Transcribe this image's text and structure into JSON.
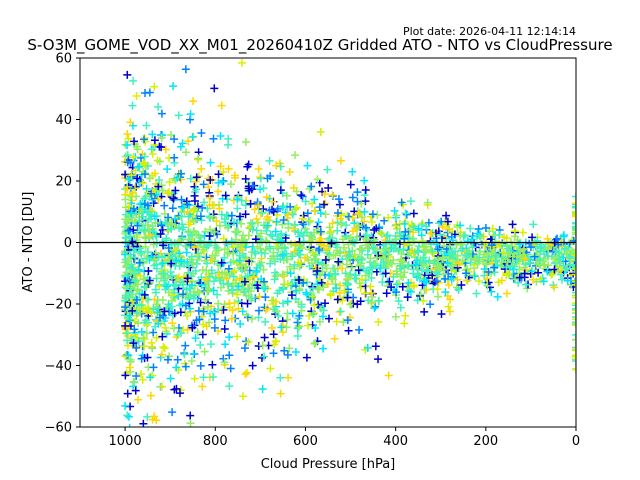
{
  "plot_date": "Plot date: 2026-04-11 12:14:14",
  "chart_data": {
    "type": "scatter",
    "title": "S-O3M_GOME_VOD_XX_M01_20260410Z Gridded ATO - NTO vs CloudPressure",
    "xlabel": "Cloud Pressure [hPa]",
    "ylabel": "ATO - NTO [DU]",
    "xlim": [
      1100,
      0
    ],
    "ylim": [
      -60,
      60
    ],
    "x_ticks": [
      1000,
      800,
      600,
      400,
      200,
      0
    ],
    "y_ticks": [
      -60,
      -40,
      -20,
      0,
      20,
      40,
      60
    ],
    "reference_line_y": 0,
    "marker": "+",
    "grid": false,
    "series_colors": [
      "#0000cd",
      "#0080ff",
      "#00e5ff",
      "#40f0c0",
      "#90ee60",
      "#d8f000",
      "#ffd700"
    ],
    "point_density": {
      "x_range": [
        1000,
        0
      ],
      "y_center": -5,
      "y_spread_at_1000": 60,
      "y_spread_at_200": 12,
      "edge_cluster_x": 0,
      "edge_cluster_y_range": [
        -45,
        15
      ]
    }
  }
}
